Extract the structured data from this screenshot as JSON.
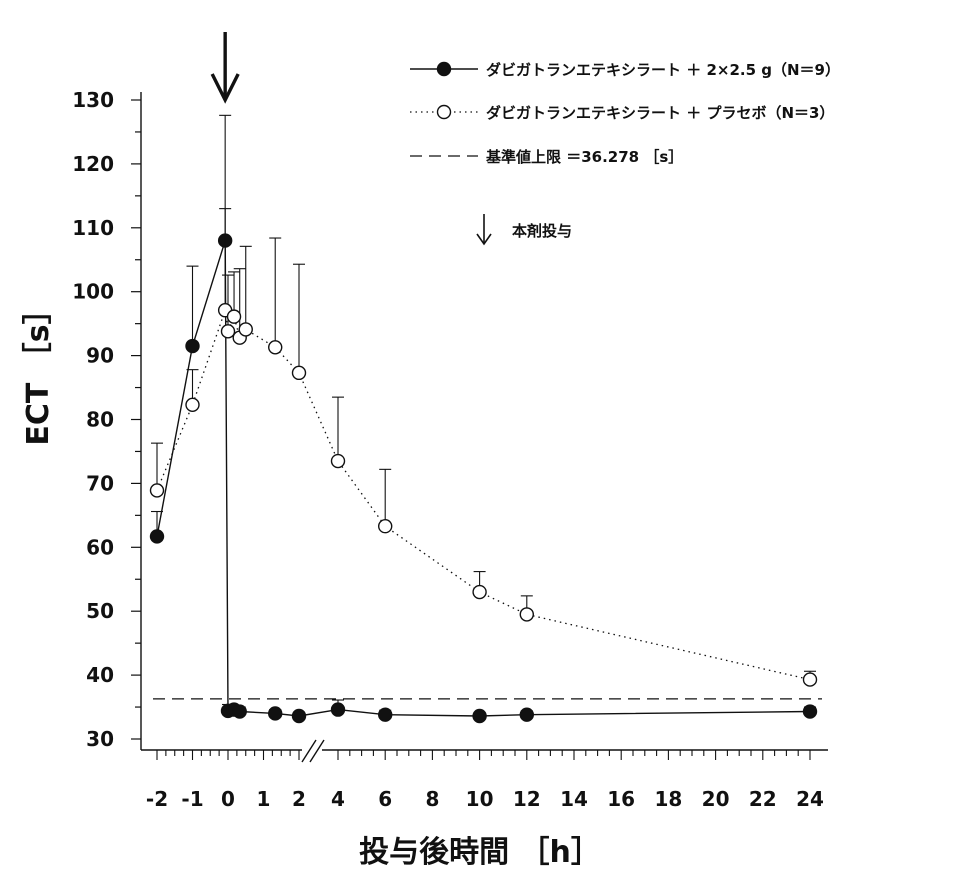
{
  "chart_data": {
    "type": "line",
    "xlabel": "投与後時間 ［h］",
    "ylabel": "ECT ［s］",
    "ylim": [
      30,
      130
    ],
    "yticks": [
      30,
      40,
      50,
      60,
      70,
      80,
      90,
      100,
      110,
      120,
      130
    ],
    "xtick_labels": [
      "-2",
      "-1",
      "0",
      "1",
      "2",
      "4",
      "6",
      "8",
      "10",
      "12",
      "14",
      "16",
      "18",
      "20",
      "22",
      "24"
    ],
    "xtick_values": [
      -2,
      -1,
      0,
      1,
      2,
      4,
      6,
      8,
      10,
      12,
      14,
      16,
      18,
      20,
      22,
      24
    ],
    "axis_break": "//",
    "series": [
      {
        "name": "ダビガトランエテキシラート ＋ 2×2.5 g（N＝9）",
        "marker": "filled-circle",
        "line": "solid",
        "color": "#111111",
        "points": [
          {
            "x": -2,
            "y": 61.7,
            "err": 3.9
          },
          {
            "x": -1,
            "y": 91.5,
            "err": 12.5
          },
          {
            "x": -0.08,
            "y": 108.0,
            "err": 5.0
          },
          {
            "x": 0.0,
            "y": 34.4,
            "err": 1.0
          },
          {
            "x": 0.17,
            "y": 34.6,
            "err": 0.7
          },
          {
            "x": 0.33,
            "y": 34.3,
            "err": 0.7
          },
          {
            "x": 1.33,
            "y": 34.0,
            "err": 0.6
          },
          {
            "x": 2,
            "y": 33.6,
            "err": 0.6
          },
          {
            "x": 4,
            "y": 34.6,
            "err": 1.5
          },
          {
            "x": 6,
            "y": 33.8,
            "err": 0.7
          },
          {
            "x": 10,
            "y": 33.6,
            "err": 0.5
          },
          {
            "x": 12,
            "y": 33.8,
            "err": 0.6
          },
          {
            "x": 24,
            "y": 34.3,
            "err": 0.7
          }
        ]
      },
      {
        "name": "ダビガトランエテキシラート ＋ プラセボ（N＝3）",
        "marker": "open-circle",
        "line": "dotted",
        "color": "#111111",
        "points": [
          {
            "x": -2,
            "y": 68.9,
            "err": 7.4
          },
          {
            "x": -1,
            "y": 82.3,
            "err": 5.5
          },
          {
            "x": -0.08,
            "y": 97.1,
            "err": 30.5
          },
          {
            "x": 0.0,
            "y": 93.8,
            "err": 8.8
          },
          {
            "x": 0.17,
            "y": 96.1,
            "err": 7.0
          },
          {
            "x": 0.33,
            "y": 92.8,
            "err": 10.8
          },
          {
            "x": 0.5,
            "y": 94.1,
            "err": 13.0
          },
          {
            "x": 1.33,
            "y": 91.3,
            "err": 17.1
          },
          {
            "x": 2,
            "y": 87.3,
            "err": 17.0
          },
          {
            "x": 4,
            "y": 73.5,
            "err": 10.0
          },
          {
            "x": 6,
            "y": 63.3,
            "err": 8.9
          },
          {
            "x": 10,
            "y": 53.0,
            "err": 3.2
          },
          {
            "x": 12,
            "y": 49.5,
            "err": 2.9
          },
          {
            "x": 24,
            "y": 39.3,
            "err": 1.3
          }
        ]
      }
    ],
    "reference_line": {
      "label": "基準値上限 ＝36.278 ［s］",
      "y": 36.278,
      "style": "dashed"
    },
    "dose_marker": {
      "label": "本剤投与",
      "x": -0.08
    },
    "legend_position": "top-right"
  }
}
